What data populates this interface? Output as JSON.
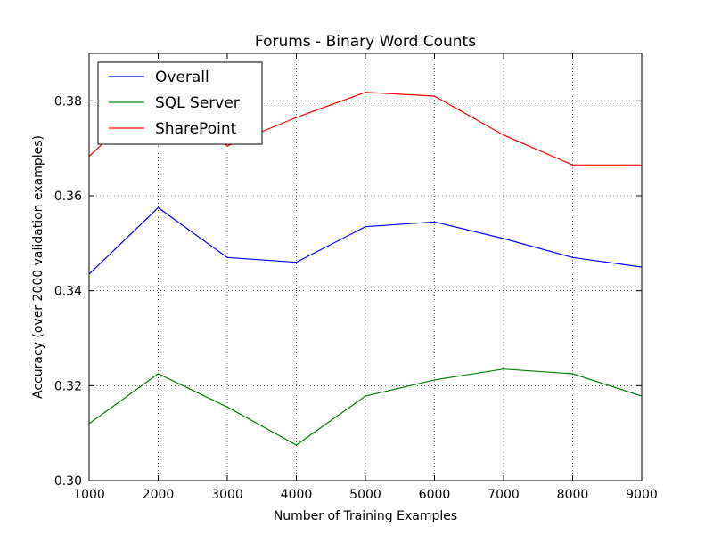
{
  "chart_data": {
    "type": "line",
    "title": "Forums - Binary Word Counts",
    "xlabel": "Number of Training Examples",
    "ylabel": "Accuracy (over 2000 validation examples)",
    "xlim": [
      1000,
      9000
    ],
    "ylim": [
      0.3,
      0.39
    ],
    "xticks": [
      1000,
      2000,
      3000,
      4000,
      5000,
      6000,
      7000,
      8000,
      9000
    ],
    "xtick_labels": [
      "1000",
      "2000",
      "3000",
      "4000",
      "5000",
      "6000",
      "7000",
      "8000",
      "9000"
    ],
    "yticks": [
      0.3,
      0.32,
      0.34,
      0.36,
      0.38
    ],
    "ytick_labels": [
      "0.30",
      "0.32",
      "0.34",
      "0.36",
      "0.38"
    ],
    "grid": true,
    "legend_position": "top-left",
    "x": [
      1000,
      2000,
      3000,
      4000,
      5000,
      6000,
      7000,
      8000,
      9000
    ],
    "series": [
      {
        "name": "Overall",
        "color": "#0000ff",
        "values": [
          0.3435,
          0.3575,
          0.347,
          0.346,
          0.3535,
          0.3545,
          0.351,
          0.347,
          0.345
        ]
      },
      {
        "name": "SQL Server",
        "color": "#008000",
        "values": [
          0.312,
          0.3225,
          0.3155,
          0.3075,
          0.3178,
          0.3212,
          0.3235,
          0.3225,
          0.3178
        ]
      },
      {
        "name": "SharePoint",
        "color": "#ff0000",
        "values": [
          0.3683,
          0.382,
          0.3705,
          0.3765,
          0.3818,
          0.381,
          0.3728,
          0.3665,
          0.3665
        ]
      }
    ]
  }
}
